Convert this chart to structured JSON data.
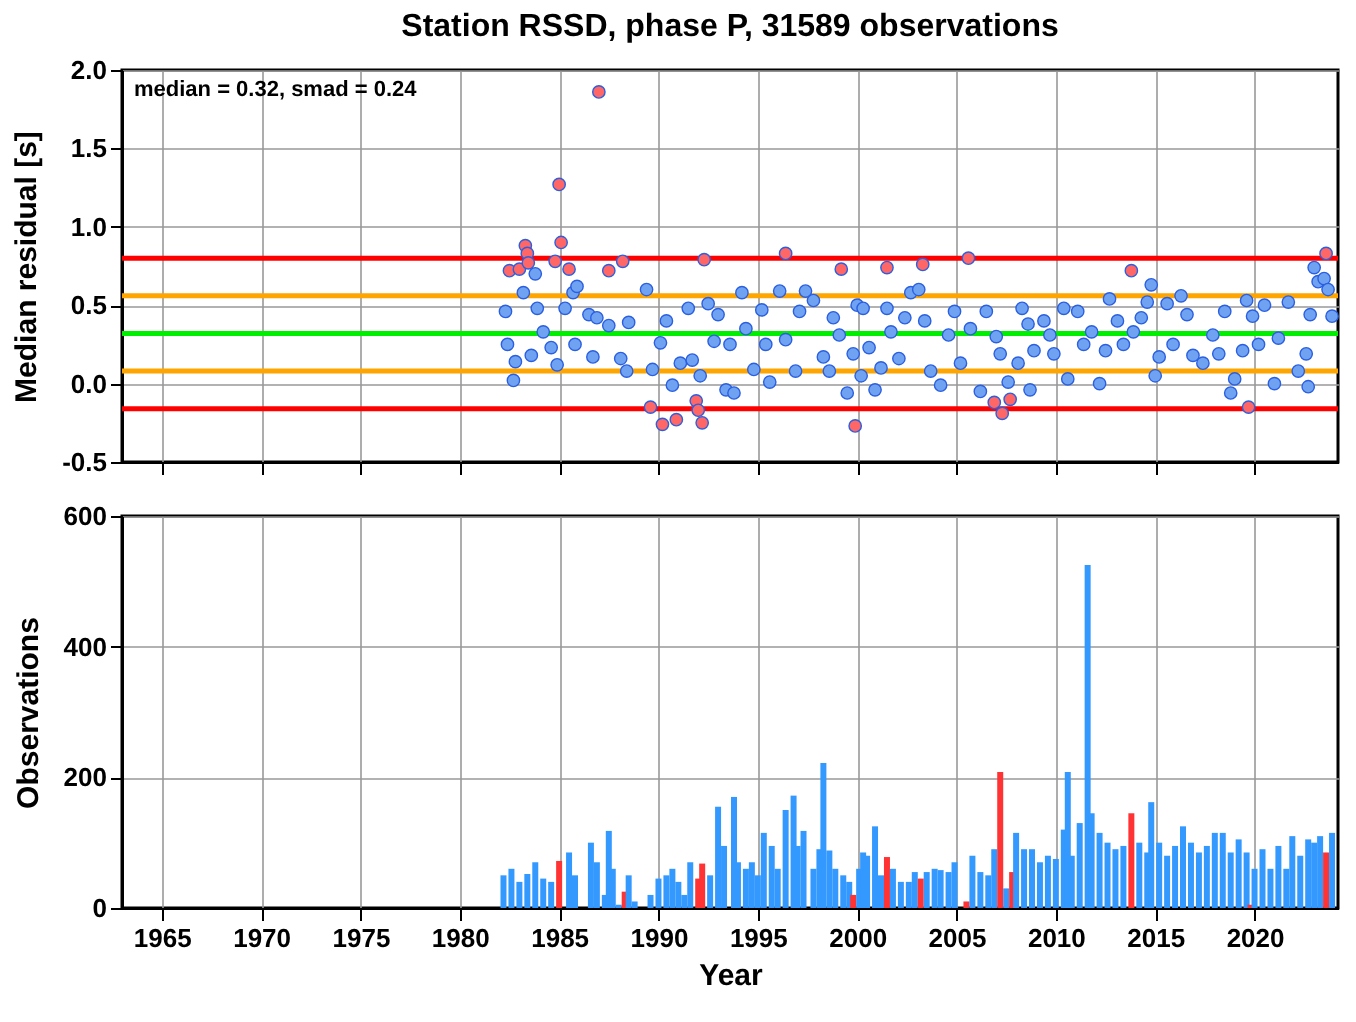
{
  "chart_data": [
    {
      "type": "scatter",
      "title": "Station RSSD, phase P, 31589 observations",
      "ylabel": "Median residual [s]",
      "annotations": [
        "median = 0.32, smad = 0.24"
      ],
      "xlim": [
        1963,
        2024.2
      ],
      "xticks": [
        1965,
        1970,
        1975,
        1980,
        1985,
        1990,
        1995,
        2000,
        2005,
        2010,
        2015,
        2020
      ],
      "ylim": [
        -0.5,
        2.0
      ],
      "yticks": [
        {
          "value": -0.5,
          "label": "-0.5"
        },
        {
          "value": 0,
          "label": "0.0"
        },
        {
          "value": 0.5,
          "label": "0.5"
        },
        {
          "value": 1,
          "label": "1.0"
        },
        {
          "value": 1.5,
          "label": "1.5"
        },
        {
          "value": 2,
          "label": "2.0"
        }
      ],
      "tick_labels": "y",
      "grid": true,
      "marker": "circle",
      "ref_lines": [
        {
          "axis": "y",
          "value": 0.8,
          "color": "#ff0000"
        },
        {
          "axis": "y",
          "value": 0.56,
          "color": "#ffa500"
        },
        {
          "axis": "y",
          "value": 0.32,
          "color": "#00ee00"
        },
        {
          "axis": "y",
          "value": 0.08,
          "color": "#ffa500"
        },
        {
          "axis": "y",
          "value": -0.16,
          "color": "#ff0000"
        }
      ],
      "series": [
        {
          "color": "#6fa3f2",
          "x": [
            1982.3,
            1982.4,
            1982.7,
            1982.8,
            1983.2,
            1983.6,
            1983.8,
            1983.9,
            1984.2,
            1984.6,
            1984.9,
            1985.3,
            1985.7,
            1985.8,
            1985.9,
            1986.5,
            1986.7,
            1986.9,
            1987.5,
            1988.1,
            1988.4,
            1988.5,
            1989.4,
            1989.7,
            1990.1,
            1990.4,
            1990.7,
            1991.1,
            1991.5,
            1991.7,
            1992.1,
            1992.5,
            1992.8,
            1993.0,
            1993.4,
            1993.6,
            1993.8,
            1994.2,
            1994.4,
            1994.8,
            1995.2,
            1995.4,
            1995.6,
            1996.1,
            1996.4,
            1996.9,
            1997.1,
            1997.4,
            1997.8,
            1998.3,
            1998.6,
            1998.8,
            1999.1,
            1999.5,
            1999.8,
            2000.0,
            2000.2,
            2000.3,
            2000.6,
            2000.9,
            2001.2,
            2001.5,
            2001.7,
            2002.1,
            2002.4,
            2002.7,
            2003.1,
            2003.4,
            2003.7,
            2004.2,
            2004.6,
            2004.9,
            2005.2,
            2005.7,
            2006.2,
            2006.5,
            2007.0,
            2007.2,
            2007.6,
            2008.1,
            2008.3,
            2008.6,
            2008.7,
            2008.9,
            2009.4,
            2009.7,
            2009.9,
            2010.4,
            2010.6,
            2011.1,
            2011.4,
            2011.8,
            2012.2,
            2012.5,
            2012.7,
            2013.1,
            2013.4,
            2013.9,
            2014.3,
            2014.6,
            2014.8,
            2015.0,
            2015.2,
            2015.6,
            2015.9,
            2016.3,
            2016.6,
            2016.9,
            2017.4,
            2017.9,
            2018.2,
            2018.5,
            2018.8,
            2019.0,
            2019.4,
            2019.6,
            2019.9,
            2020.2,
            2020.5,
            2021.0,
            2021.2,
            2021.7,
            2022.2,
            2022.6,
            2022.7,
            2022.8,
            2023.0,
            2023.2,
            2023.5,
            2023.7,
            2023.9
          ],
          "values": [
            0.46,
            0.25,
            0.02,
            0.14,
            0.58,
            0.18,
            0.7,
            0.48,
            0.33,
            0.23,
            0.12,
            0.48,
            0.58,
            0.25,
            0.62,
            0.44,
            0.17,
            0.42,
            0.37,
            0.16,
            0.08,
            0.39,
            0.6,
            0.09,
            0.26,
            0.4,
            -0.01,
            0.13,
            0.48,
            0.15,
            0.05,
            0.51,
            0.27,
            0.44,
            -0.04,
            0.25,
            -0.06,
            0.58,
            0.35,
            0.09,
            0.47,
            0.25,
            0.01,
            0.59,
            0.28,
            0.08,
            0.46,
            0.59,
            0.53,
            0.17,
            0.08,
            0.42,
            0.31,
            -0.06,
            0.19,
            0.5,
            0.05,
            0.48,
            0.23,
            -0.04,
            0.1,
            0.48,
            0.33,
            0.16,
            0.42,
            0.58,
            0.6,
            0.4,
            0.08,
            -0.01,
            0.31,
            0.46,
            0.13,
            0.35,
            -0.05,
            0.46,
            0.3,
            0.19,
            0.01,
            0.13,
            0.48,
            0.38,
            -0.04,
            0.21,
            0.4,
            0.31,
            0.19,
            0.48,
            0.03,
            0.46,
            0.25,
            0.33,
            0.0,
            0.21,
            0.54,
            0.4,
            0.25,
            0.33,
            0.42,
            0.52,
            0.63,
            0.05,
            0.17,
            0.51,
            0.25,
            0.56,
            0.44,
            0.18,
            0.13,
            0.31,
            0.19,
            0.46,
            -0.06,
            0.03,
            0.21,
            0.53,
            0.43,
            0.25,
            0.5,
            0.0,
            0.29,
            0.52,
            0.08,
            0.19,
            -0.02,
            0.44,
            0.74,
            0.65,
            0.67,
            0.6,
            0.43
          ]
        },
        {
          "color": "#ff6666",
          "x": [
            1982.5,
            1983.0,
            1983.3,
            1983.4,
            1983.45,
            1984.8,
            1985.0,
            1985.1,
            1985.5,
            1987.0,
            1987.5,
            1988.2,
            1989.6,
            1990.2,
            1990.9,
            1991.9,
            1992.0,
            1992.2,
            1992.3,
            1996.4,
            1999.2,
            1999.9,
            2001.5,
            2003.3,
            2005.6,
            2006.9,
            2007.3,
            2007.7,
            2013.8,
            2019.7,
            2023.6
          ],
          "values": [
            0.72,
            0.73,
            0.88,
            0.83,
            0.77,
            0.78,
            1.27,
            0.9,
            0.73,
            1.86,
            0.72,
            0.78,
            -0.15,
            -0.26,
            -0.23,
            -0.11,
            -0.17,
            -0.25,
            0.79,
            0.83,
            0.73,
            -0.27,
            0.74,
            0.76,
            0.8,
            -0.12,
            -0.19,
            -0.1,
            0.72,
            -0.15,
            0.83
          ]
        }
      ]
    },
    {
      "type": "bar",
      "xlabel": "Year",
      "ylabel": "Observations",
      "xlim": [
        1963,
        2024.2
      ],
      "xticks": [
        1965,
        1970,
        1975,
        1980,
        1985,
        1990,
        1995,
        2000,
        2005,
        2010,
        2015,
        2020
      ],
      "ylim": [
        0,
        600
      ],
      "yticks": [
        0,
        200,
        400,
        600
      ],
      "grid": true,
      "x": [
        1982.2,
        1982.6,
        1983.0,
        1983.4,
        1983.8,
        1984.2,
        1984.6,
        1985.0,
        1985.5,
        1985.8,
        1986.6,
        1986.9,
        1987.3,
        1987.5,
        1987.7,
        1988.0,
        1988.3,
        1988.5,
        1988.8,
        1989.6,
        1990.0,
        1990.4,
        1990.7,
        1991.0,
        1991.3,
        1991.6,
        1992.0,
        1992.2,
        1992.6,
        1993.0,
        1993.3,
        1993.8,
        1994.0,
        1994.4,
        1994.7,
        1995.0,
        1995.3,
        1995.7,
        1996.0,
        1996.4,
        1996.8,
        1997.0,
        1997.3,
        1997.8,
        1998.1,
        1998.3,
        1998.6,
        1998.9,
        1999.3,
        1999.6,
        1999.8,
        2000.1,
        2000.3,
        2000.5,
        2000.9,
        2001.2,
        2001.5,
        2001.8,
        2002.2,
        2002.6,
        2002.9,
        2003.2,
        2003.5,
        2003.9,
        2004.2,
        2004.6,
        2004.9,
        2005.5,
        2005.8,
        2006.2,
        2006.6,
        2006.9,
        2007.2,
        2007.5,
        2007.8,
        2008.0,
        2008.4,
        2008.8,
        2009.2,
        2009.6,
        2010.0,
        2010.4,
        2010.6,
        2010.8,
        2011.2,
        2011.6,
        2011.8,
        2012.2,
        2012.6,
        2013.0,
        2013.4,
        2013.8,
        2014.2,
        2014.6,
        2014.8,
        2015.2,
        2015.6,
        2016.0,
        2016.4,
        2016.8,
        2017.2,
        2017.6,
        2018.0,
        2018.4,
        2018.8,
        2019.2,
        2019.6,
        2019.8,
        2020.0,
        2020.4,
        2020.8,
        2021.2,
        2021.6,
        2021.9,
        2022.3,
        2022.7,
        2023.0,
        2023.3,
        2023.6,
        2023.9
      ],
      "values": [
        50,
        60,
        40,
        52,
        70,
        45,
        40,
        72,
        85,
        50,
        100,
        70,
        20,
        118,
        60,
        5,
        25,
        50,
        10,
        20,
        45,
        50,
        60,
        40,
        20,
        70,
        45,
        68,
        50,
        155,
        95,
        170,
        70,
        60,
        70,
        50,
        115,
        95,
        60,
        150,
        172,
        95,
        118,
        60,
        90,
        222,
        88,
        60,
        50,
        40,
        20,
        60,
        85,
        80,
        125,
        50,
        78,
        60,
        40,
        40,
        55,
        45,
        55,
        60,
        58,
        55,
        70,
        10,
        80,
        55,
        50,
        90,
        208,
        30,
        55,
        115,
        90,
        90,
        70,
        80,
        75,
        120,
        208,
        80,
        130,
        525,
        145,
        115,
        100,
        90,
        95,
        145,
        100,
        85,
        162,
        100,
        80,
        95,
        125,
        100,
        85,
        95,
        115,
        115,
        85,
        105,
        85,
        5,
        60,
        90,
        60,
        95,
        60,
        110,
        80,
        105,
        100,
        110,
        85,
        115
      ],
      "colors": [
        "#3399ff",
        "#3399ff",
        "#3399ff",
        "#3399ff",
        "#3399ff",
        "#3399ff",
        "#3399ff",
        "#ff3333",
        "#3399ff",
        "#3399ff",
        "#3399ff",
        "#3399ff",
        "#3399ff",
        "#3399ff",
        "#3399ff",
        "#3399ff",
        "#ff3333",
        "#3399ff",
        "#3399ff",
        "#3399ff",
        "#3399ff",
        "#3399ff",
        "#3399ff",
        "#3399ff",
        "#3399ff",
        "#3399ff",
        "#ff3333",
        "#ff3333",
        "#3399ff",
        "#3399ff",
        "#3399ff",
        "#3399ff",
        "#3399ff",
        "#3399ff",
        "#3399ff",
        "#3399ff",
        "#3399ff",
        "#3399ff",
        "#3399ff",
        "#3399ff",
        "#3399ff",
        "#3399ff",
        "#3399ff",
        "#3399ff",
        "#3399ff",
        "#3399ff",
        "#3399ff",
        "#3399ff",
        "#3399ff",
        "#3399ff",
        "#ff3333",
        "#3399ff",
        "#3399ff",
        "#3399ff",
        "#3399ff",
        "#3399ff",
        "#ff3333",
        "#3399ff",
        "#3399ff",
        "#3399ff",
        "#3399ff",
        "#ff3333",
        "#3399ff",
        "#3399ff",
        "#3399ff",
        "#3399ff",
        "#3399ff",
        "#ff3333",
        "#3399ff",
        "#3399ff",
        "#3399ff",
        "#3399ff",
        "#ff3333",
        "#3399ff",
        "#ff3333",
        "#3399ff",
        "#3399ff",
        "#3399ff",
        "#3399ff",
        "#3399ff",
        "#3399ff",
        "#3399ff",
        "#3399ff",
        "#3399ff",
        "#3399ff",
        "#3399ff",
        "#3399ff",
        "#3399ff",
        "#3399ff",
        "#3399ff",
        "#3399ff",
        "#ff3333",
        "#3399ff",
        "#3399ff",
        "#3399ff",
        "#3399ff",
        "#3399ff",
        "#3399ff",
        "#3399ff",
        "#3399ff",
        "#3399ff",
        "#3399ff",
        "#3399ff",
        "#3399ff",
        "#3399ff",
        "#3399ff",
        "#3399ff",
        "#ff3333",
        "#3399ff",
        "#3399ff",
        "#3399ff",
        "#3399ff",
        "#3399ff",
        "#3399ff",
        "#3399ff",
        "#3399ff",
        "#3399ff",
        "#3399ff",
        "#ff3333",
        "#3399ff"
      ]
    }
  ]
}
